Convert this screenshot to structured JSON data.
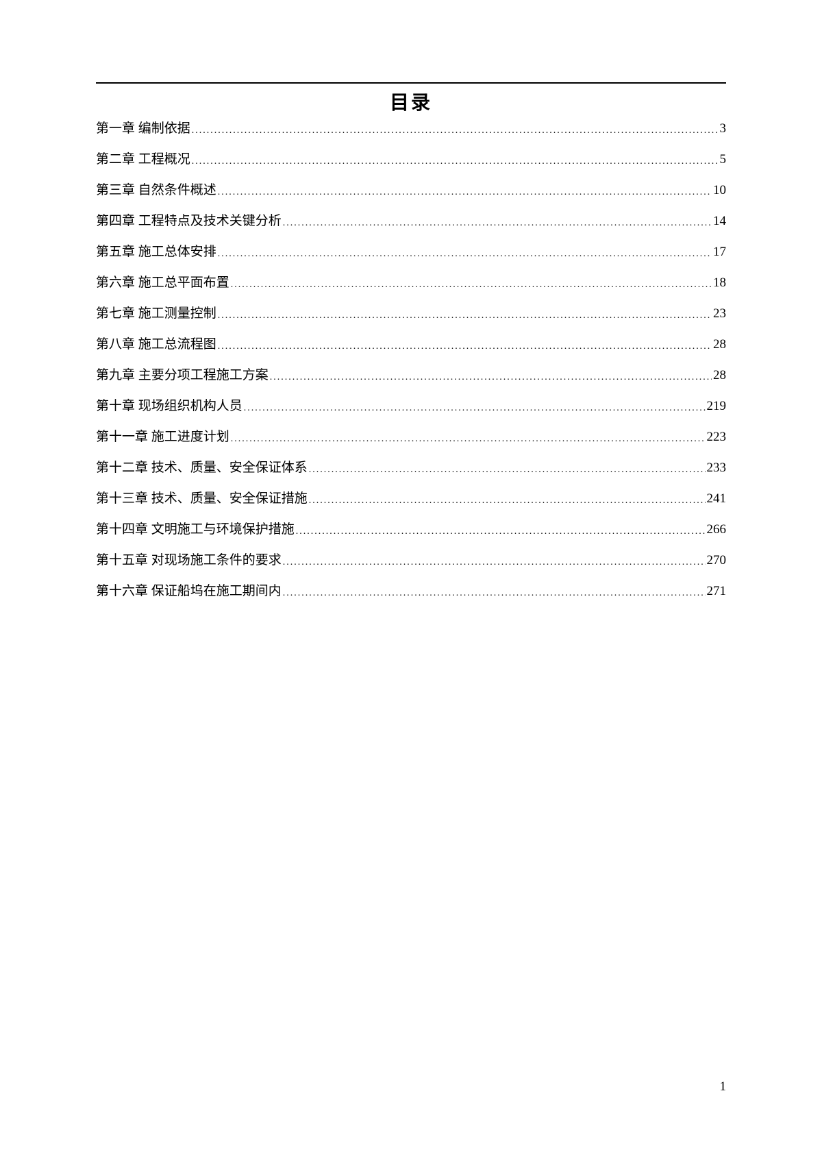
{
  "title": "目录",
  "toc": [
    {
      "label": "第一章 编制依据",
      "page": "3"
    },
    {
      "label": "第二章 工程概况",
      "page": "5"
    },
    {
      "label": "第三章 自然条件概述",
      "page": "10"
    },
    {
      "label": "第四章 工程特点及技术关键分析",
      "page": "14"
    },
    {
      "label": "第五章 施工总体安排",
      "page": "17"
    },
    {
      "label": "第六章 施工总平面布置",
      "page": "18"
    },
    {
      "label": "第七章 施工测量控制",
      "page": "23"
    },
    {
      "label": "第八章 施工总流程图",
      "page": "28"
    },
    {
      "label": "第九章 主要分项工程施工方案",
      "page": "28"
    },
    {
      "label": "第十章 现场组织机构人员",
      "page": "219"
    },
    {
      "label": "第十一章 施工进度计划",
      "page": "223"
    },
    {
      "label": "第十二章 技术、质量、安全保证体系",
      "page": "233"
    },
    {
      "label": "第十三章 技术、质量、安全保证措施",
      "page": "241"
    },
    {
      "label": "第十四章 文明施工与环境保护措施",
      "page": "266"
    },
    {
      "label": "第十五章 对现场施工条件的要求",
      "page": "270"
    },
    {
      "label": "第十六章 保证船坞在施工期间内",
      "page": "271"
    }
  ],
  "page_number": "1"
}
